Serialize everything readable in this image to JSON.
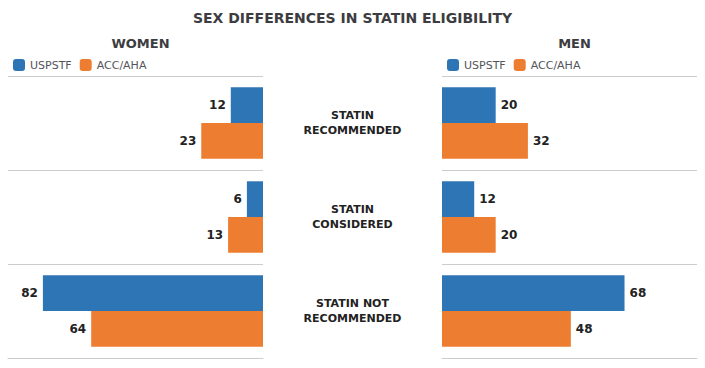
{
  "title": "SEX DIFFERENCES IN STATIN ELIGIBILITY",
  "chart_data": [
    {
      "type": "bar",
      "title": "WOMEN",
      "orientation": "horizontal",
      "categories": [
        "STATIN\nRECOMMENDED",
        "STATIN\nCONSIDERED",
        "STATIN NOT\nRECOMMENDED"
      ],
      "series": [
        {
          "name": "USPSTF",
          "color": "#2e75b6",
          "values": [
            12,
            6,
            82
          ]
        },
        {
          "name": "ACC/AHA",
          "color": "#ed7d31",
          "values": [
            23,
            13,
            64
          ]
        }
      ],
      "xlim": [
        0,
        95
      ],
      "data_labels": true,
      "tick_labels": "y",
      "grid": true,
      "legend": "upper left"
    },
    {
      "type": "bar",
      "title": "MEN",
      "orientation": "horizontal",
      "categories": [
        "STATIN\nRECOMMENDED",
        "STATIN\nCONSIDERED",
        "STATIN NOT\nRECOMMENDED"
      ],
      "series": [
        {
          "name": "USPSTF",
          "color": "#2e75b6",
          "values": [
            20,
            12,
            68
          ]
        },
        {
          "name": "ACC/AHA",
          "color": "#ed7d31",
          "values": [
            32,
            20,
            48
          ]
        }
      ],
      "xlim": [
        0,
        95
      ],
      "data_labels": true,
      "tick_labels": false,
      "grid": true,
      "legend": "upper left"
    }
  ]
}
